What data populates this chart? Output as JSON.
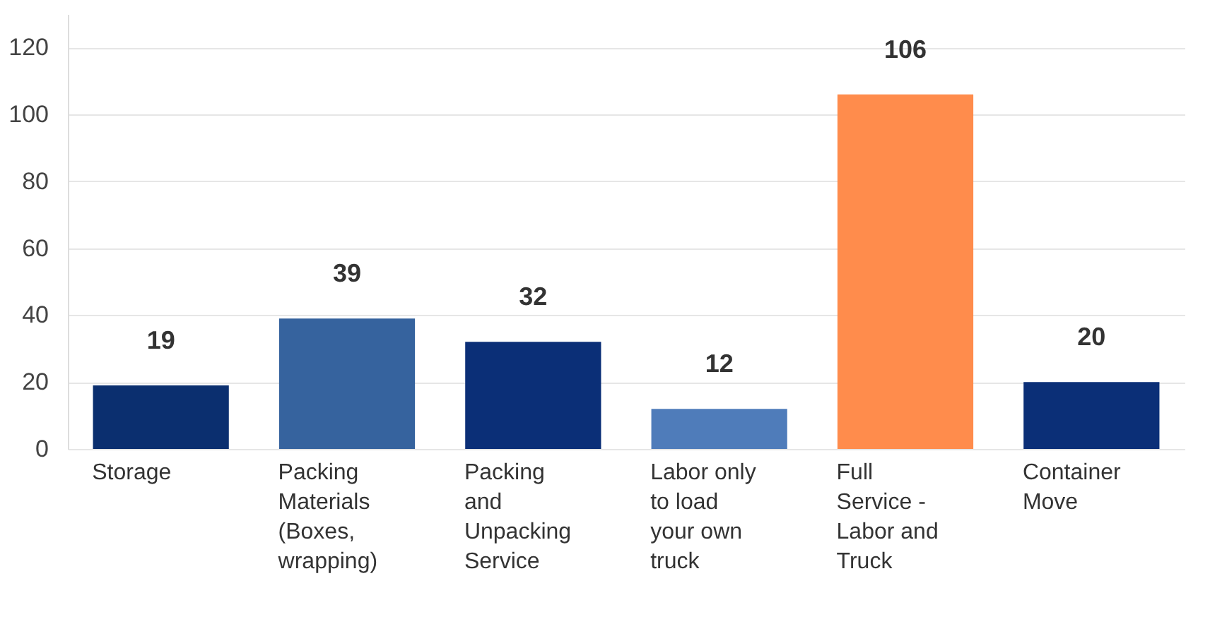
{
  "chart_data": {
    "type": "bar",
    "categories": [
      "Storage",
      "Packing Materials (Boxes, wrapping)",
      "Packing and Unpacking Service",
      "Labor only to load your own truck",
      "Full Service - Labor and Truck",
      "Container Move"
    ],
    "values": [
      19,
      39,
      32,
      12,
      106,
      20
    ],
    "colors": [
      "#0b2f6f",
      "#36639e",
      "#0b2f77",
      "#4f7cba",
      "#ff8c4c",
      "#0b2f77"
    ],
    "ylim": [
      0,
      130
    ],
    "yticks": [
      0,
      20,
      40,
      60,
      80,
      100,
      120
    ],
    "grid": "y",
    "data_labels": true
  }
}
